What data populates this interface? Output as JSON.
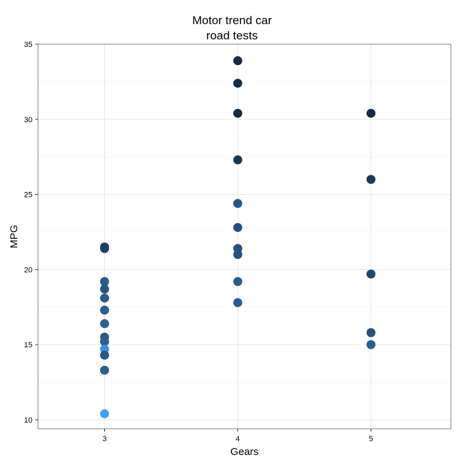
{
  "chart_data": {
    "type": "scatter",
    "title_lines": [
      "Motor trend car",
      "road tests"
    ],
    "xlabel": "Gears",
    "ylabel": "MPG",
    "xlim": [
      2.5,
      5.6
    ],
    "ylim": [
      9.4,
      35
    ],
    "x_ticks": [
      3,
      4,
      5
    ],
    "y_ticks": [
      10,
      15,
      20,
      25,
      30,
      35
    ],
    "grid": true,
    "legend": "none",
    "points": [
      {
        "x": 3,
        "y": 21.5,
        "color": "#1d3b5b"
      },
      {
        "x": 3,
        "y": 21.4,
        "color": "#1f3f62"
      },
      {
        "x": 3,
        "y": 19.2,
        "color": "#2a5a8a"
      },
      {
        "x": 3,
        "y": 18.7,
        "color": "#29577f"
      },
      {
        "x": 3,
        "y": 18.1,
        "color": "#2a5988"
      },
      {
        "x": 3,
        "y": 17.3,
        "color": "#2c5e8f"
      },
      {
        "x": 3,
        "y": 16.4,
        "color": "#2d5f91"
      },
      {
        "x": 3,
        "y": 15.5,
        "color": "#2b5a88"
      },
      {
        "x": 3,
        "y": 15.2,
        "color": "#2c5d8e"
      },
      {
        "x": 3,
        "y": 14.7,
        "color": "#3d8fd8"
      },
      {
        "x": 3,
        "y": 14.3,
        "color": "#2a5585"
      },
      {
        "x": 3,
        "y": 13.3,
        "color": "#2c5d8e"
      },
      {
        "x": 3,
        "y": 10.4,
        "color": "#42a0f2"
      },
      {
        "x": 4,
        "y": 33.9,
        "color": "#132b43"
      },
      {
        "x": 4,
        "y": 32.4,
        "color": "#142d46"
      },
      {
        "x": 4,
        "y": 30.4,
        "color": "#132b43"
      },
      {
        "x": 4,
        "y": 27.3,
        "color": "#183654"
      },
      {
        "x": 4,
        "y": 24.4,
        "color": "#2a5687"
      },
      {
        "x": 4,
        "y": 22.8,
        "color": "#264f7c"
      },
      {
        "x": 4,
        "y": 21.4,
        "color": "#264e7a"
      },
      {
        "x": 4,
        "y": 21.0,
        "color": "#28507e"
      },
      {
        "x": 4,
        "y": 19.2,
        "color": "#2c5a8a"
      },
      {
        "x": 4,
        "y": 17.8,
        "color": "#2c5b8c"
      },
      {
        "x": 5,
        "y": 30.4,
        "color": "#132b43"
      },
      {
        "x": 5,
        "y": 26.0,
        "color": "#1b3a5a"
      },
      {
        "x": 5,
        "y": 19.7,
        "color": "#22466e"
      },
      {
        "x": 5,
        "y": 15.8,
        "color": "#28517f"
      },
      {
        "x": 5,
        "y": 15.0,
        "color": "#2c5a8b"
      }
    ]
  }
}
